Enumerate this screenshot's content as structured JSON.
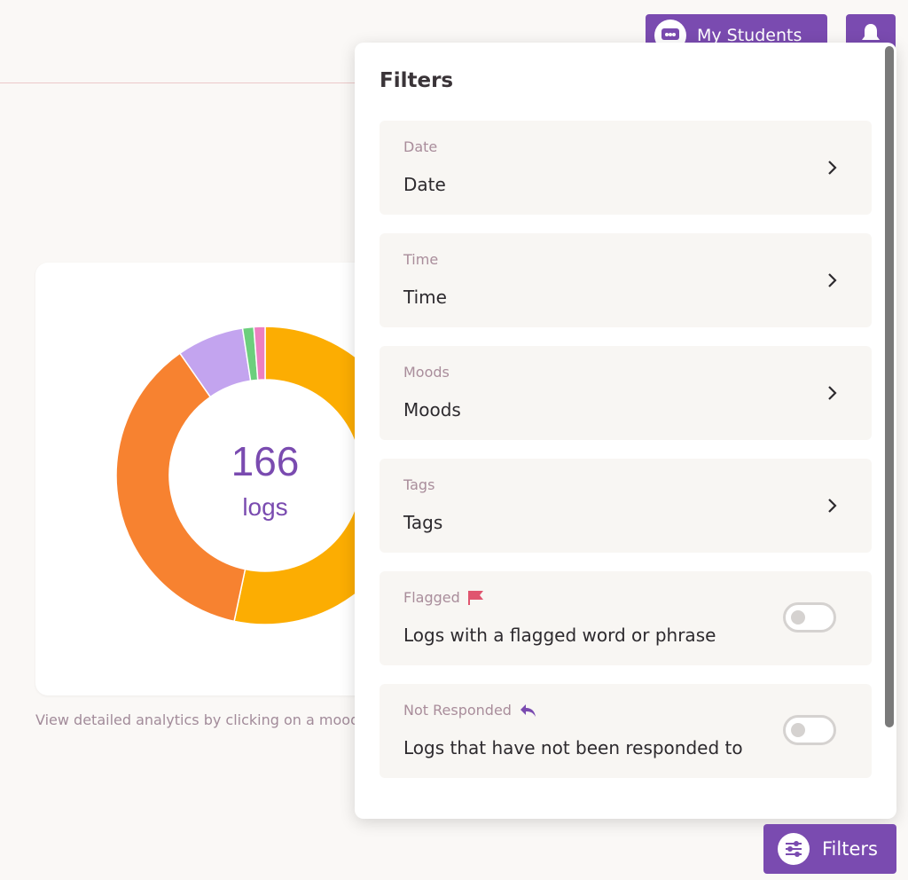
{
  "header": {
    "my_students_label": "My Students",
    "my_students_icon": "class-icon",
    "bell_icon": "bell-icon"
  },
  "chart": {
    "total_value": "166",
    "total_unit": "logs",
    "hint": "View detailed analytics by clicking on a mood"
  },
  "chart_data": {
    "type": "pie",
    "title": "",
    "center_label": "166 logs",
    "total": 166,
    "slices": [
      {
        "value": 88,
        "color": "#fcad02"
      },
      {
        "value": 61,
        "color": "#f78230"
      },
      {
        "value": 12,
        "color": "#c3a4ef"
      },
      {
        "value": 2,
        "color": "#6ccf7d"
      },
      {
        "value": 2,
        "color": "#ed7fc1"
      }
    ]
  },
  "filters": {
    "title": "Filters",
    "rows": [
      {
        "label": "Date",
        "value": "Date",
        "control": "chevron"
      },
      {
        "label": "Time",
        "value": "Time",
        "control": "chevron"
      },
      {
        "label": "Moods",
        "value": "Moods",
        "control": "chevron"
      },
      {
        "label": "Tags",
        "value": "Tags",
        "control": "chevron"
      },
      {
        "label": "Flagged",
        "value": "Logs with a flagged word or phrase",
        "control": "toggle",
        "on": false,
        "icon": "flag-icon"
      },
      {
        "label": "Not Responded",
        "value": "Logs that have not been responded to",
        "control": "toggle",
        "on": false,
        "icon": "reply-icon"
      }
    ]
  },
  "filters_button": {
    "label": "Filters",
    "icon": "sliders-icon"
  },
  "colors": {
    "accent": "#7a4bb0",
    "flag": "#e0556f",
    "page_bg": "#faf8f6"
  }
}
